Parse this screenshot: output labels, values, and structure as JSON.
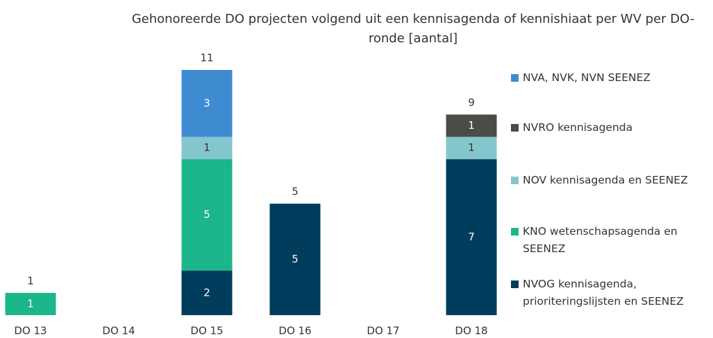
{
  "chart_data": {
    "type": "stacked_bar",
    "title": "Gehonoreerde DO projecten volgend uit een kennisagenda of kennishiaat per WV per DO-ronde [aantal]",
    "categories": [
      "DO 13",
      "DO 14",
      "DO 15",
      "DO 16",
      "DO 17",
      "DO 18"
    ],
    "series": [
      {
        "name": "NVOG kennisagenda, prioriteringslijsten en SEENEZ",
        "color": "#003d5c",
        "values": [
          null,
          null,
          2,
          5,
          null,
          7
        ]
      },
      {
        "name": "KNO wetenschapsagenda en SEENEZ",
        "color": "#1bb68a",
        "values": [
          1,
          null,
          5,
          null,
          null,
          null
        ]
      },
      {
        "name": "NOV kennisagenda en SEENEZ",
        "color": "#83c6cc",
        "values": [
          null,
          null,
          1,
          null,
          null,
          1
        ]
      },
      {
        "name": "NVRO kennisagenda",
        "color": "#4b4b48",
        "values": [
          null,
          null,
          null,
          null,
          null,
          1
        ]
      },
      {
        "name": "NVA, NVK, NVN SEENEZ",
        "color": "#3f8bd1",
        "values": [
          null,
          null,
          3,
          null,
          null,
          null
        ]
      }
    ],
    "totals": [
      1,
      null,
      11,
      5,
      null,
      9
    ],
    "legend": "right"
  }
}
